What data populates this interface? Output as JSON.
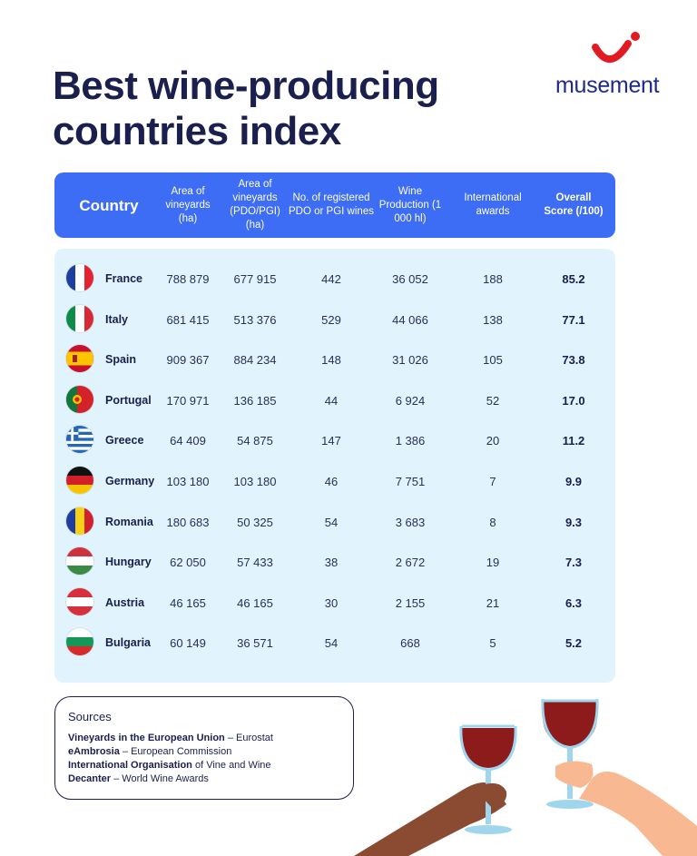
{
  "title_line1": "Best wine-producing",
  "title_line2": "countries index",
  "brand": {
    "name": "musement",
    "color": "#1f2a8a",
    "accent": "#e21a22"
  },
  "colors": {
    "header_bg": "#3d6cf5",
    "body_bg": "#e1f3fc",
    "text": "#1a1f4d"
  },
  "header": {
    "country": "Country",
    "area_vineyards": "Area of vineyards (ha)",
    "area_pdo": "Area of vineyards (PDO/PGI) (ha)",
    "registered": "No. of registered PDO or PGI wines",
    "production": "Wine Production (1 000 hl)",
    "awards": "International awards",
    "score": "Overall Score (/100)"
  },
  "rows": [
    {
      "country": "France",
      "flag": "france-flag-icon",
      "area": "788 879",
      "pdo": "677 915",
      "reg": "442",
      "prod": "36 052",
      "awards": "188",
      "score": "85.2"
    },
    {
      "country": "Italy",
      "flag": "italy-flag-icon",
      "area": "681 415",
      "pdo": "513 376",
      "reg": "529",
      "prod": "44 066",
      "awards": "138",
      "score": "77.1"
    },
    {
      "country": "Spain",
      "flag": "spain-flag-icon",
      "area": "909 367",
      "pdo": "884 234",
      "reg": "148",
      "prod": "31 026",
      "awards": "105",
      "score": "73.8"
    },
    {
      "country": "Portugal",
      "flag": "portugal-flag-icon",
      "area": "170 971",
      "pdo": "136 185",
      "reg": "44",
      "prod": "6 924",
      "awards": "52",
      "score": "17.0"
    },
    {
      "country": "Greece",
      "flag": "greece-flag-icon",
      "area": "64 409",
      "pdo": "54 875",
      "reg": "147",
      "prod": "1 386",
      "awards": "20",
      "score": "11.2"
    },
    {
      "country": "Germany",
      "flag": "germany-flag-icon",
      "area": "103 180",
      "pdo": "103 180",
      "reg": "46",
      "prod": "7 751",
      "awards": "7",
      "score": "9.9"
    },
    {
      "country": "Romania",
      "flag": "romania-flag-icon",
      "area": "180 683",
      "pdo": "50 325",
      "reg": "54",
      "prod": "3 683",
      "awards": "8",
      "score": "9.3"
    },
    {
      "country": "Hungary",
      "flag": "hungary-flag-icon",
      "area": "62 050",
      "pdo": "57 433",
      "reg": "38",
      "prod": "2 672",
      "awards": "19",
      "score": "7.3"
    },
    {
      "country": "Austria",
      "flag": "austria-flag-icon",
      "area": "46 165",
      "pdo": "46 165",
      "reg": "30",
      "prod": "2 155",
      "awards": "21",
      "score": "6.3"
    },
    {
      "country": "Bulgaria",
      "flag": "bulgaria-flag-icon",
      "area": "60 149",
      "pdo": "36 571",
      "reg": "54",
      "prod": "668",
      "awards": "5",
      "score": "5.2"
    }
  ],
  "sources": {
    "title": "Sources",
    "items": [
      {
        "bold": "Vineyards in the European Union",
        "rest": " – Eurostat"
      },
      {
        "bold": "eAmbrosia",
        "rest": " – European Commission"
      },
      {
        "bold": "International Organisation",
        "rest": " of Vine and Wine"
      },
      {
        "bold": "Decanter",
        "rest": " – World Wine Awards"
      }
    ]
  }
}
